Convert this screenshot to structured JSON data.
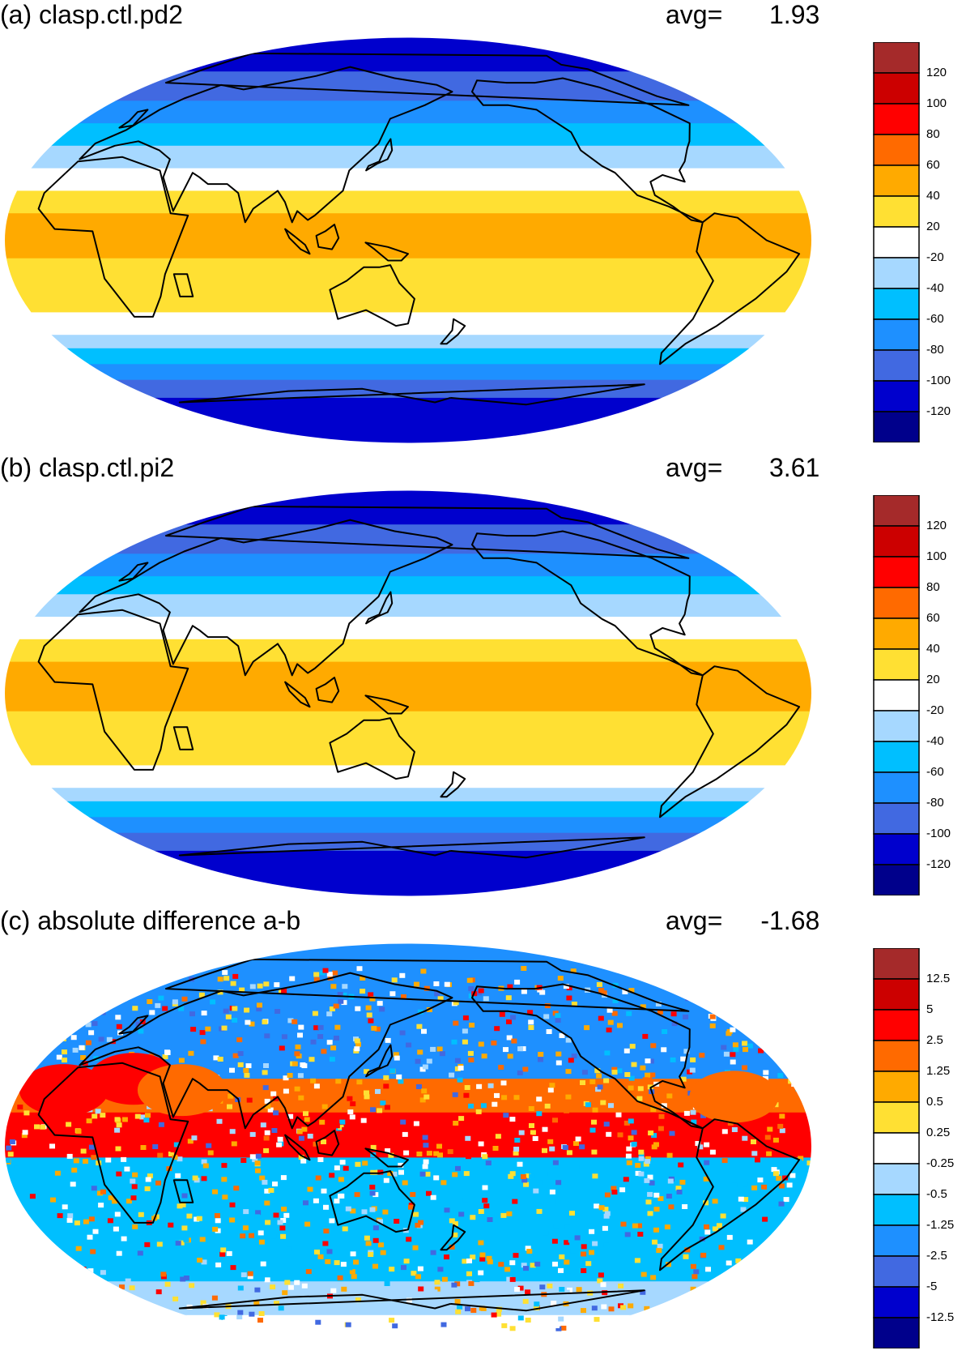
{
  "panels": [
    {
      "id": "a",
      "title": "(a) clasp.ctl.pd2",
      "avg_label": "avg=",
      "avg_value": "1.93",
      "labels": [
        "120",
        "100",
        "80",
        "60",
        "40",
        "20",
        "-20",
        "-40",
        "-60",
        "-80",
        "-100",
        "-120"
      ],
      "bands": [
        {
          "lat": 90,
          "lvl": 1
        },
        {
          "lat": 75,
          "lvl": 2
        },
        {
          "lat": 62,
          "lvl": 3
        },
        {
          "lat": 52,
          "lvl": 4
        },
        {
          "lat": 42,
          "lvl": 5
        },
        {
          "lat": 32,
          "lvl": 6
        },
        {
          "lat": 22,
          "lvl": 7
        },
        {
          "lat": 12,
          "lvl": 8
        },
        {
          "lat": -8,
          "lvl": 7
        },
        {
          "lat": -20,
          "lvl": 7
        },
        {
          "lat": -32,
          "lvl": 6
        },
        {
          "lat": -42,
          "lvl": 5
        },
        {
          "lat": -48,
          "lvl": 4
        },
        {
          "lat": -55,
          "lvl": 3
        },
        {
          "lat": -62,
          "lvl": 2
        },
        {
          "lat": -70,
          "lvl": 1
        },
        {
          "lat": -90,
          "lvl": 1
        }
      ]
    },
    {
      "id": "b",
      "title": "(b) clasp.ctl.pi2",
      "avg_label": "avg=",
      "avg_value": "3.61",
      "labels": [
        "120",
        "100",
        "80",
        "60",
        "40",
        "20",
        "-20",
        "-40",
        "-60",
        "-80",
        "-100",
        "-120"
      ],
      "bands": [
        {
          "lat": 90,
          "lvl": 1
        },
        {
          "lat": 75,
          "lvl": 2
        },
        {
          "lat": 62,
          "lvl": 3
        },
        {
          "lat": 52,
          "lvl": 4
        },
        {
          "lat": 44,
          "lvl": 5
        },
        {
          "lat": 34,
          "lvl": 6
        },
        {
          "lat": 24,
          "lvl": 7
        },
        {
          "lat": 14,
          "lvl": 8
        },
        {
          "lat": -8,
          "lvl": 7
        },
        {
          "lat": -22,
          "lvl": 7
        },
        {
          "lat": -32,
          "lvl": 6
        },
        {
          "lat": -42,
          "lvl": 5
        },
        {
          "lat": -48,
          "lvl": 4
        },
        {
          "lat": -55,
          "lvl": 3
        },
        {
          "lat": -62,
          "lvl": 2
        },
        {
          "lat": -70,
          "lvl": 1
        },
        {
          "lat": -90,
          "lvl": 1
        }
      ]
    },
    {
      "id": "c",
      "title": "(c) absolute difference a-b",
      "avg_label": "avg=",
      "avg_value": "-1.68",
      "labels": [
        "12.5",
        "5",
        "2.5",
        "1.25",
        "0.5",
        "0.25",
        "-0.25",
        "-0.5",
        "-1.25",
        "-2.5",
        "-5",
        "-12.5"
      ],
      "bands": [
        {
          "lat": 90,
          "lvl": 3
        },
        {
          "lat": 65,
          "lvl": 3
        },
        {
          "lat": 40,
          "lvl": 3
        },
        {
          "lat": 30,
          "lvl": 9
        },
        {
          "lat": 15,
          "lvl": 10
        },
        {
          "lat": -5,
          "lvl": 4
        },
        {
          "lat": -45,
          "lvl": 4
        },
        {
          "lat": -60,
          "lvl": 5
        },
        {
          "lat": -75,
          "lvl": 6
        },
        {
          "lat": -90,
          "lvl": 6
        }
      ]
    }
  ],
  "colors": [
    "#00008b",
    "#0000cd",
    "#4169e1",
    "#1e90ff",
    "#00bfff",
    "#a6d8ff",
    "#ffffff",
    "#ffe033",
    "#ffaa00",
    "#ff6a00",
    "#ff0000",
    "#cc0000",
    "#a52a2a"
  ]
}
